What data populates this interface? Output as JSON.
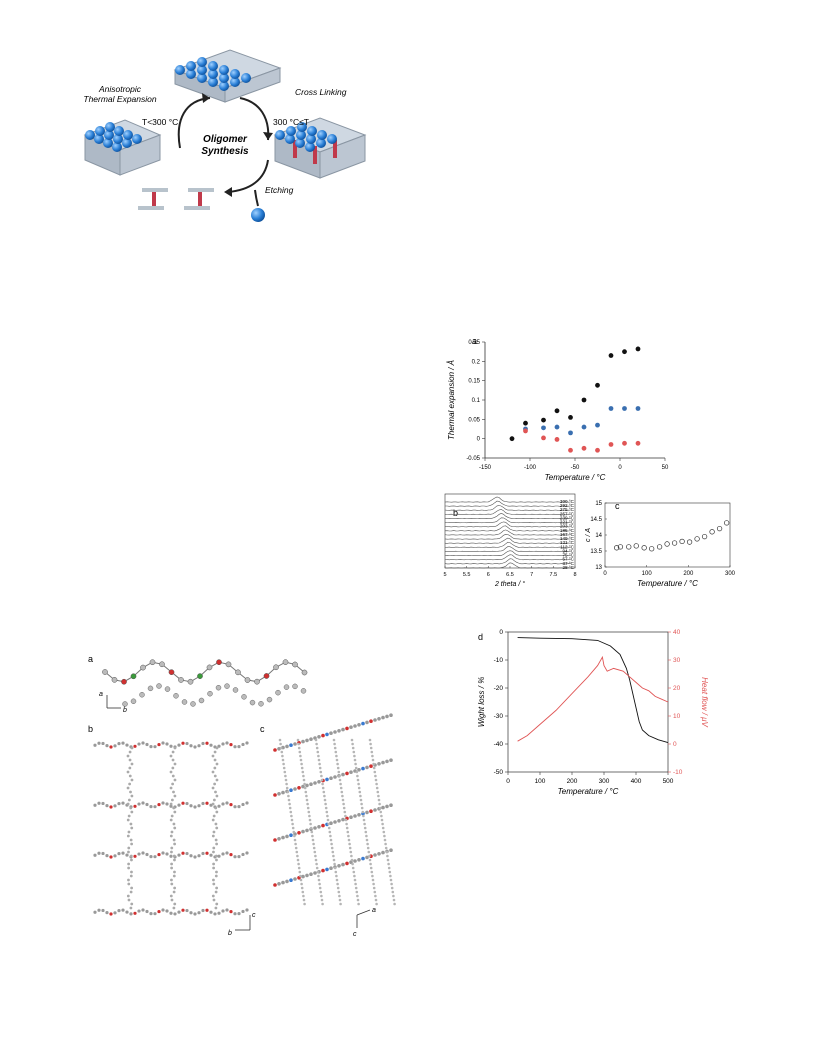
{
  "scheme": {
    "top_left_label_1": "Anisotropic",
    "top_left_label_2": "Thermal Expansion",
    "top_right_label": "Cross Linking",
    "temp_left": "T<300 °C",
    "temp_right": "300 °C≤T",
    "center_1": "Oligomer",
    "center_2": "Synthesis",
    "etching": "Etching"
  },
  "fig_left": {
    "panel_a": "a",
    "panel_b": "b",
    "panel_c": "c",
    "axis_a_a": "a",
    "axis_a_b": "b",
    "axis_b_c": "c",
    "axis_b_b": "b",
    "axis_c_a": "a",
    "axis_c_c": "c"
  },
  "colors": {
    "black": "#111111",
    "blue": "#3a6fb0",
    "red": "#e05555",
    "gray": "#555555"
  },
  "chart_data": [
    {
      "panel": "a",
      "type": "scatter",
      "xlabel": "Temperature / °C",
      "ylabel": "Thermal expansion / Å",
      "xlim": [
        -150,
        50
      ],
      "ylim": [
        -0.05,
        0.25
      ],
      "xticks": [
        "-150",
        "-100",
        "-50",
        "0",
        "50"
      ],
      "yticks": [
        "-0.05",
        "0",
        "0.05",
        "0.1",
        "0.15",
        "0.2",
        "0.25"
      ],
      "series": [
        {
          "color": "black",
          "x": [
            -120,
            -105,
            -85,
            -70,
            -55,
            -40,
            -25,
            -10,
            5,
            20
          ],
          "y": [
            0.0,
            0.04,
            0.048,
            0.072,
            0.055,
            0.1,
            0.138,
            0.215,
            0.225,
            0.232
          ]
        },
        {
          "color": "blue",
          "x": [
            -105,
            -85,
            -70,
            -55,
            -40,
            -25,
            -10,
            5,
            20
          ],
          "y": [
            0.025,
            0.028,
            0.03,
            0.015,
            0.03,
            0.035,
            0.078,
            0.078,
            0.078
          ]
        },
        {
          "color": "red",
          "x": [
            -105,
            -85,
            -70,
            -55,
            -40,
            -25,
            -10,
            5,
            20
          ],
          "y": [
            0.02,
            0.002,
            -0.002,
            -0.03,
            -0.025,
            -0.03,
            -0.015,
            -0.012,
            -0.012
          ]
        }
      ]
    },
    {
      "panel": "b",
      "type": "line",
      "xlabel": "2 theta / °",
      "xticks": [
        "5",
        "5.5",
        "6",
        "6.5",
        "7",
        "7.5",
        "8"
      ],
      "temperatures": [
        "300 °C",
        "292 °C",
        "275 °C",
        "257 °C",
        "239 °C",
        "221 °C",
        "203 °C",
        "185 °C",
        "167 °C",
        "149 °C",
        "131 °C",
        "112 °C",
        "94 °C",
        "75 °C",
        "57 °C",
        "37 °C",
        "28 °C"
      ],
      "peak_positions": [
        6.2,
        6.22,
        6.25,
        6.28,
        6.3,
        6.33,
        6.35,
        6.38,
        6.4,
        6.42,
        6.45,
        6.47,
        6.48,
        6.5,
        6.51,
        6.52,
        6.52
      ]
    },
    {
      "panel": "c",
      "type": "scatter",
      "xlabel": "Temperature / °C",
      "ylabel": "c / Å",
      "xlim": [
        0,
        300
      ],
      "ylim": [
        13,
        15
      ],
      "xticks": [
        "0",
        "100",
        "200",
        "300"
      ],
      "yticks": [
        "13",
        "13.5",
        "14",
        "14.5",
        "15"
      ],
      "x": [
        28,
        37,
        57,
        75,
        94,
        112,
        131,
        149,
        167,
        185,
        203,
        221,
        239,
        257,
        275,
        292
      ],
      "y": [
        13.6,
        13.63,
        13.63,
        13.66,
        13.6,
        13.57,
        13.63,
        13.72,
        13.75,
        13.8,
        13.78,
        13.88,
        13.95,
        14.1,
        14.2,
        14.38
      ]
    },
    {
      "panel": "d",
      "type": "line",
      "xlabel": "Temperature / °C",
      "ylabel": "Wight loss / %",
      "y2label": "Heat flow / μV",
      "xlim": [
        0,
        500
      ],
      "ylim": [
        -50,
        0
      ],
      "y2lim": [
        -10,
        40
      ],
      "xticks": [
        "0",
        "100",
        "200",
        "300",
        "400",
        "500"
      ],
      "yticks": [
        "-50",
        "-40",
        "-30",
        "-20",
        "-10",
        "0"
      ],
      "y2ticks": [
        "-10",
        "0",
        "10",
        "20",
        "30",
        "40"
      ],
      "series": [
        {
          "name": "weight",
          "color": "black",
          "x": [
            30,
            100,
            200,
            280,
            320,
            350,
            370,
            380,
            390,
            400,
            410,
            420,
            440,
            470,
            500
          ],
          "y": [
            -2,
            -2.2,
            -2.4,
            -3,
            -5,
            -8,
            -13,
            -17,
            -22,
            -27,
            -32,
            -35,
            -37,
            -38.5,
            -39.5
          ]
        },
        {
          "name": "heat",
          "color": "red",
          "x": [
            30,
            60,
            100,
            150,
            200,
            250,
            280,
            295,
            300,
            310,
            330,
            360,
            380,
            400,
            420,
            440,
            460,
            480,
            500
          ],
          "y": [
            1,
            3,
            7,
            12,
            18,
            24,
            28,
            31,
            28,
            26,
            27,
            26,
            24,
            22,
            20,
            19,
            17,
            16,
            15
          ]
        }
      ]
    }
  ]
}
